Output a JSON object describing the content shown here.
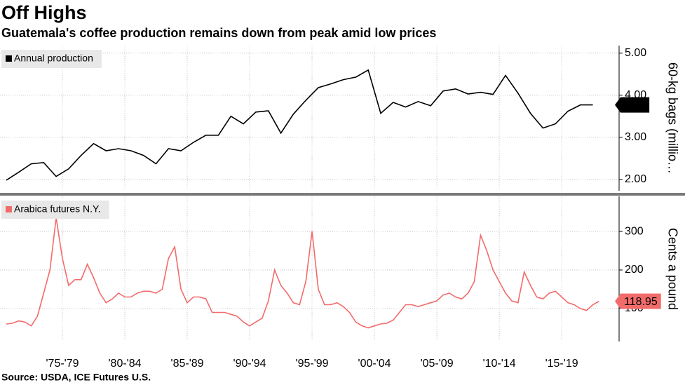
{
  "title": "Off Highs",
  "subtitle": "Guatemala's coffee production remains down from peak amid low prices",
  "source": "Source: USDA, ICE Futures U.S.",
  "chart_data": [
    {
      "type": "line",
      "ylabel": "60-kg bags (millio…",
      "x": [
        1973,
        1974,
        1975,
        1976,
        1977,
        1978,
        1979,
        1980,
        1981,
        1982,
        1983,
        1984,
        1985,
        1986,
        1987,
        1988,
        1989,
        1990,
        1991,
        1992,
        1993,
        1994,
        1995,
        1996,
        1997,
        1998,
        1999,
        2000,
        2001,
        2002,
        2003,
        2004,
        2005,
        2006,
        2007,
        2008,
        2009,
        2010,
        2011,
        2012,
        2013,
        2014,
        2015,
        2016,
        2017,
        2018,
        2019,
        2020
      ],
      "series": [
        {
          "name": "Annual production",
          "color": "#000000",
          "values": [
            1.98,
            2.17,
            2.37,
            2.4,
            2.07,
            2.25,
            2.57,
            2.85,
            2.68,
            2.73,
            2.68,
            2.57,
            2.37,
            2.73,
            2.68,
            2.88,
            3.05,
            3.05,
            3.5,
            3.32,
            3.6,
            3.63,
            3.1,
            3.55,
            3.88,
            4.18,
            4.27,
            4.37,
            4.43,
            4.6,
            3.57,
            3.83,
            3.72,
            3.85,
            3.75,
            4.1,
            4.15,
            4.03,
            4.07,
            4.02,
            4.47,
            4.05,
            3.57,
            3.22,
            3.32,
            3.62,
            3.77,
            3.77
          ]
        }
      ],
      "xlim": [
        1972.5,
        2022.1
      ],
      "ylim": [
        1.73,
        5.18
      ],
      "yticks": [
        {
          "value": 2,
          "label": "2.00"
        },
        {
          "value": 3,
          "label": "3.00"
        },
        {
          "value": 4,
          "label": "4.00"
        },
        {
          "value": 5,
          "label": "5.00"
        }
      ],
      "grid": true
    },
    {
      "type": "line",
      "ylabel": "Cents a pound",
      "x": [
        1973,
        1973.5,
        1974,
        1974.5,
        1975,
        1975.5,
        1976,
        1976.5,
        1977,
        1977.5,
        1978,
        1978.5,
        1979,
        1979.5,
        1980,
        1980.5,
        1981,
        1981.5,
        1982,
        1982.5,
        1983,
        1983.5,
        1984,
        1984.5,
        1985,
        1985.5,
        1986,
        1986.5,
        1987,
        1987.5,
        1988,
        1988.5,
        1989,
        1989.5,
        1990,
        1990.5,
        1991,
        1991.5,
        1992,
        1992.5,
        1993,
        1993.5,
        1994,
        1994.5,
        1995,
        1995.5,
        1996,
        1996.5,
        1997,
        1997.5,
        1998,
        1998.5,
        1999,
        1999.5,
        2000,
        2000.5,
        2001,
        2001.5,
        2002,
        2002.5,
        2003,
        2003.5,
        2004,
        2004.5,
        2005,
        2005.5,
        2006,
        2006.5,
        2007,
        2007.5,
        2008,
        2008.5,
        2009,
        2009.5,
        2010,
        2010.5,
        2011,
        2011.5,
        2012,
        2012.5,
        2013,
        2013.5,
        2014,
        2014.5,
        2015,
        2015.5,
        2016,
        2016.5,
        2017,
        2017.5,
        2018,
        2018.5,
        2019,
        2019.5,
        2020,
        2020.5
      ],
      "series": [
        {
          "name": "Arabica futures N.Y.",
          "color": "#f26b6b",
          "values": [
            60,
            62,
            68,
            65,
            55,
            80,
            140,
            200,
            335,
            230,
            160,
            175,
            175,
            215,
            180,
            140,
            115,
            125,
            140,
            130,
            130,
            140,
            145,
            145,
            140,
            150,
            230,
            260,
            150,
            115,
            130,
            130,
            125,
            90,
            90,
            90,
            85,
            80,
            65,
            55,
            65,
            75,
            120,
            200,
            160,
            140,
            115,
            110,
            170,
            300,
            150,
            110,
            110,
            115,
            105,
            90,
            65,
            55,
            50,
            55,
            60,
            62,
            70,
            90,
            110,
            110,
            105,
            110,
            115,
            120,
            135,
            140,
            130,
            125,
            140,
            170,
            290,
            250,
            200,
            170,
            140,
            120,
            115,
            195,
            160,
            130,
            125,
            140,
            145,
            130,
            115,
            110,
            100,
            95,
            110,
            118.95
          ]
        }
      ],
      "xlim": [
        1972.5,
        2022.1
      ],
      "ylim": [
        14.5,
        391
      ],
      "yticks": [
        100,
        200,
        300
      ],
      "xticks": [
        {
          "value": 1977.5,
          "label": "'75-'79"
        },
        {
          "value": 1982.5,
          "label": "'80-'84"
        },
        {
          "value": 1987.5,
          "label": "'85-'89"
        },
        {
          "value": 1992.5,
          "label": "'90-'94"
        },
        {
          "value": 1997.5,
          "label": "'95-'99"
        },
        {
          "value": 2002.5,
          "label": "'00-'04"
        },
        {
          "value": 2007.5,
          "label": "'05-'09"
        },
        {
          "value": 2012.5,
          "label": "'10-'14"
        },
        {
          "value": 2017.5,
          "label": "'15-'19"
        }
      ],
      "grid": true
    }
  ]
}
